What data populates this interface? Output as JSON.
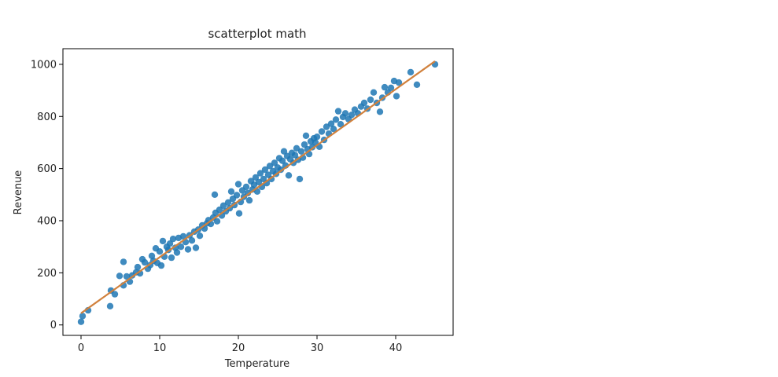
{
  "colors": {
    "points": "#1f77b4",
    "regression_line": "#d1813d",
    "axes": "#000000",
    "background": "#ffffff"
  },
  "chart_data": {
    "type": "scatter",
    "title": "scatterplot math",
    "xlabel": "Temperature",
    "ylabel": "Revenue",
    "xlim": [
      -2.3,
      47.3
    ],
    "ylim": [
      -40,
      1060
    ],
    "xticks": [
      0,
      10,
      20,
      30,
      40
    ],
    "yticks": [
      0,
      200,
      400,
      600,
      800,
      1000
    ],
    "grid": false,
    "legend": "none",
    "regression_line": {
      "x": [
        0,
        45
      ],
      "y": [
        45,
        1012
      ]
    },
    "points": [
      [
        0,
        12
      ],
      [
        0.2,
        34
      ],
      [
        0.9,
        56
      ],
      [
        3.7,
        72
      ],
      [
        3.8,
        132
      ],
      [
        4.3,
        118
      ],
      [
        4.9,
        188
      ],
      [
        5.4,
        242
      ],
      [
        5.4,
        152
      ],
      [
        5.8,
        186
      ],
      [
        6.2,
        166
      ],
      [
        6.5,
        190
      ],
      [
        7.0,
        202
      ],
      [
        7.2,
        222
      ],
      [
        7.5,
        198
      ],
      [
        7.8,
        252
      ],
      [
        8.1,
        240
      ],
      [
        8.5,
        216
      ],
      [
        8.8,
        230
      ],
      [
        9.0,
        265
      ],
      [
        9.2,
        246
      ],
      [
        9.5,
        294
      ],
      [
        9.7,
        238
      ],
      [
        10.0,
        282
      ],
      [
        10.2,
        228
      ],
      [
        10.4,
        322
      ],
      [
        10.6,
        262
      ],
      [
        10.9,
        300
      ],
      [
        11.1,
        288
      ],
      [
        11.3,
        312
      ],
      [
        11.5,
        258
      ],
      [
        11.7,
        330
      ],
      [
        12.0,
        296
      ],
      [
        12.2,
        278
      ],
      [
        12.4,
        334
      ],
      [
        12.7,
        300
      ],
      [
        13.0,
        340
      ],
      [
        13.3,
        318
      ],
      [
        13.6,
        290
      ],
      [
        13.8,
        344
      ],
      [
        14.1,
        324
      ],
      [
        14.4,
        358
      ],
      [
        14.6,
        296
      ],
      [
        14.9,
        366
      ],
      [
        15.1,
        342
      ],
      [
        15.4,
        382
      ],
      [
        15.7,
        370
      ],
      [
        16.0,
        390
      ],
      [
        16.2,
        402
      ],
      [
        16.5,
        388
      ],
      [
        16.8,
        412
      ],
      [
        17.0,
        500
      ],
      [
        17.1,
        430
      ],
      [
        17.3,
        398
      ],
      [
        17.6,
        442
      ],
      [
        17.9,
        420
      ],
      [
        18.1,
        458
      ],
      [
        18.4,
        436
      ],
      [
        18.7,
        470
      ],
      [
        18.9,
        448
      ],
      [
        19.1,
        512
      ],
      [
        19.3,
        484
      ],
      [
        19.5,
        460
      ],
      [
        19.8,
        498
      ],
      [
        20.0,
        540
      ],
      [
        20.1,
        428
      ],
      [
        20.3,
        472
      ],
      [
        20.5,
        516
      ],
      [
        20.7,
        492
      ],
      [
        21.0,
        530
      ],
      [
        21.2,
        506
      ],
      [
        21.4,
        478
      ],
      [
        21.6,
        552
      ],
      [
        21.8,
        520
      ],
      [
        22.0,
        538
      ],
      [
        22.2,
        566
      ],
      [
        22.4,
        512
      ],
      [
        22.6,
        548
      ],
      [
        22.8,
        582
      ],
      [
        23.0,
        530
      ],
      [
        23.2,
        560
      ],
      [
        23.4,
        596
      ],
      [
        23.6,
        544
      ],
      [
        23.8,
        576
      ],
      [
        24.0,
        610
      ],
      [
        24.2,
        560
      ],
      [
        24.4,
        590
      ],
      [
        24.6,
        622
      ],
      [
        24.8,
        580
      ],
      [
        25.0,
        604
      ],
      [
        25.2,
        640
      ],
      [
        25.4,
        596
      ],
      [
        25.6,
        630
      ],
      [
        25.8,
        666
      ],
      [
        26.0,
        612
      ],
      [
        26.2,
        648
      ],
      [
        26.4,
        574
      ],
      [
        26.6,
        636
      ],
      [
        26.8,
        660
      ],
      [
        27.0,
        622
      ],
      [
        27.2,
        652
      ],
      [
        27.4,
        678
      ],
      [
        27.6,
        634
      ],
      [
        27.8,
        560
      ],
      [
        28.0,
        666
      ],
      [
        28.2,
        642
      ],
      [
        28.4,
        692
      ],
      [
        28.6,
        726
      ],
      [
        28.8,
        674
      ],
      [
        29.0,
        656
      ],
      [
        29.2,
        704
      ],
      [
        29.4,
        682
      ],
      [
        29.6,
        716
      ],
      [
        29.8,
        700
      ],
      [
        30.0,
        722
      ],
      [
        30.3,
        684
      ],
      [
        30.6,
        742
      ],
      [
        30.9,
        710
      ],
      [
        31.2,
        760
      ],
      [
        31.5,
        734
      ],
      [
        31.8,
        772
      ],
      [
        32.1,
        752
      ],
      [
        32.4,
        788
      ],
      [
        32.7,
        820
      ],
      [
        33.0,
        770
      ],
      [
        33.3,
        798
      ],
      [
        33.6,
        812
      ],
      [
        34.0,
        790
      ],
      [
        34.4,
        806
      ],
      [
        34.8,
        826
      ],
      [
        35.2,
        812
      ],
      [
        35.6,
        838
      ],
      [
        36.0,
        852
      ],
      [
        36.4,
        830
      ],
      [
        36.8,
        864
      ],
      [
        37.2,
        892
      ],
      [
        37.6,
        852
      ],
      [
        38.0,
        818
      ],
      [
        38.3,
        872
      ],
      [
        38.6,
        912
      ],
      [
        39.0,
        892
      ],
      [
        39.4,
        910
      ],
      [
        39.8,
        936
      ],
      [
        40.1,
        878
      ],
      [
        40.4,
        930
      ],
      [
        41.9,
        970
      ],
      [
        42.7,
        922
      ],
      [
        45.0,
        1000
      ]
    ]
  }
}
